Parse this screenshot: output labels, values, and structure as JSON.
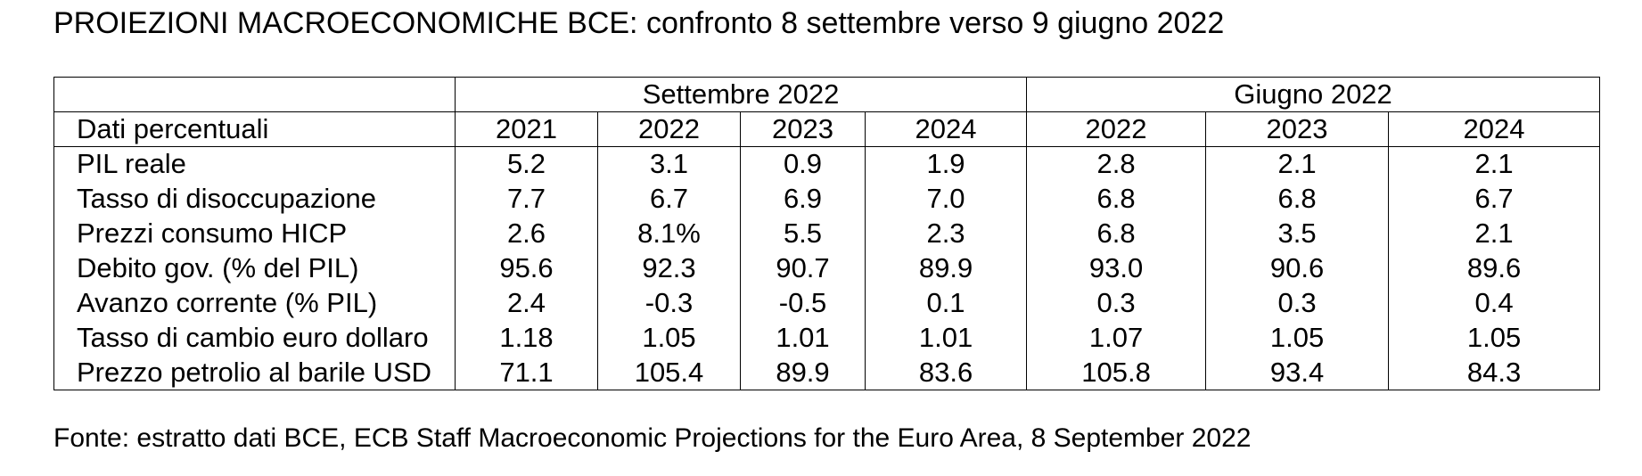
{
  "title": "PROIEZIONI MACROECONOMICHE BCE: confronto 8 settembre verso 9 giugno 2022",
  "table": {
    "group_headers": {
      "blank": "",
      "september": "Settembre 2022",
      "june": "Giugno 2022"
    },
    "column_headers": [
      "Dati percentuali",
      "2021",
      "2022",
      "2023",
      "2024",
      "2022",
      "2023",
      "2024"
    ],
    "rows": [
      {
        "label": "PIL reale",
        "values": [
          "5.2",
          "3.1",
          "0.9",
          "1.9",
          "2.8",
          "2.1",
          "2.1"
        ]
      },
      {
        "label": "Tasso di disoccupazione",
        "values": [
          "7.7",
          "6.7",
          "6.9",
          "7.0",
          "6.8",
          "6.8",
          "6.7"
        ]
      },
      {
        "label": "Prezzi consumo HICP",
        "values": [
          "2.6",
          "8.1%",
          "5.5",
          "2.3",
          "6.8",
          "3.5",
          "2.1"
        ]
      },
      {
        "label": "Debito gov.  (% del PIL)",
        "values": [
          "95.6",
          "92.3",
          "90.7",
          "89.9",
          "93.0",
          "90.6",
          "89.6"
        ]
      },
      {
        "label": "Avanzo corrente (% PIL)",
        "values": [
          "2.4",
          "-0.3",
          "-0.5",
          "0.1",
          "0.3",
          "0.3",
          "0.4"
        ]
      },
      {
        "label": "Tasso di cambio euro dollaro",
        "values": [
          "1.18",
          "1.05",
          "1.01",
          "1.01",
          "1.07",
          "1.05",
          "1.05"
        ]
      },
      {
        "label": "Prezzo petrolio al barile USD",
        "values": [
          "71.1",
          "105.4",
          "89.9",
          "83.6",
          "105.8",
          "93.4",
          "84.3"
        ]
      }
    ]
  },
  "source": "Fonte: estratto dati BCE, ECB Staff Macroeconomic Projections for the Euro Area, 8  September  2022"
}
